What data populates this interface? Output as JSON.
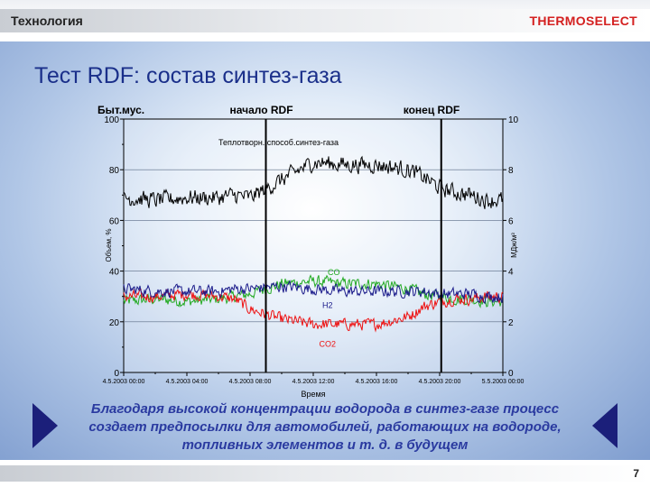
{
  "header": {
    "section": "Технология",
    "brand": "THERMOSELECT"
  },
  "slide": {
    "title": "Тест RDF: состав синтез-газа",
    "caption_lines": [
      "Благодаря высокой концентрации водорода в синтез-газе процесс",
      "создает предпосылки для автомобилей, работающих на водороде,",
      "топливных элементов и т. д. в будущем"
    ],
    "page_number": "7"
  },
  "colors": {
    "bg_accent": "#7f9dcf",
    "brand": "#d42020",
    "title": "#1a2f8a",
    "arrow": "#1b1f7a"
  },
  "chart_data": {
    "type": "line",
    "xlabel": "Время",
    "ylabel_left": "Объем, %",
    "ylabel_right": "МДж/м³",
    "ylim_left": [
      0,
      100
    ],
    "ylim_right": [
      0,
      10
    ],
    "yticks_left": [
      0,
      20,
      40,
      60,
      80,
      100
    ],
    "yticks_right": [
      0,
      2,
      4,
      6,
      8,
      10
    ],
    "xlim": [
      0,
      24
    ],
    "x_ticks": [
      {
        "x": 0,
        "label": "4.5.2003 00:00"
      },
      {
        "x": 4,
        "label": "4.5.2003 04:00"
      },
      {
        "x": 8,
        "label": "4.5.2003 08:00"
      },
      {
        "x": 12,
        "label": "4.5.2003 12:00"
      },
      {
        "x": 16,
        "label": "4.5.2003 16:00"
      },
      {
        "x": 20,
        "label": "4.5.2003 20:00"
      },
      {
        "x": 24,
        "label": "5.5.2003 00:00"
      }
    ],
    "markers": [
      {
        "x": 9.0,
        "label": "начало RDF"
      },
      {
        "x": 20.1,
        "label": "конец RDF"
      }
    ],
    "top_left_label": "Быт.мус.",
    "grid": true,
    "series": [
      {
        "name": "Теплотворн. способ.синтез-газа",
        "axis": "right",
        "color": "#000000",
        "x": [
          0,
          2,
          4,
          6,
          7,
          8,
          10,
          12,
          14,
          16,
          18,
          19,
          20,
          21,
          22,
          23,
          24
        ],
        "y": [
          6.9,
          6.8,
          6.9,
          6.9,
          7.0,
          6.9,
          7.6,
          8.3,
          8.2,
          8.2,
          8.0,
          7.7,
          7.3,
          7.1,
          7.0,
          6.8,
          6.8
        ]
      },
      {
        "name": "CO",
        "axis": "left",
        "color": "#22aa22",
        "x": [
          0,
          2,
          4,
          6,
          7,
          8,
          10,
          12,
          14,
          16,
          18,
          19,
          20,
          21,
          22,
          23,
          24
        ],
        "y": [
          28,
          29,
          28,
          29,
          30,
          31,
          35,
          36,
          35,
          35,
          33,
          31,
          30,
          29,
          29,
          28,
          28
        ]
      },
      {
        "name": "H2",
        "axis": "left",
        "color": "#1a1a8a",
        "x": [
          0,
          2,
          4,
          6,
          7,
          8,
          10,
          12,
          14,
          16,
          18,
          19,
          20,
          21,
          22,
          23,
          24
        ],
        "y": [
          33,
          32,
          32,
          32,
          33,
          33,
          34,
          33,
          32,
          32,
          32,
          32,
          31,
          31,
          31,
          30,
          30
        ]
      },
      {
        "name": "CO2",
        "axis": "left",
        "color": "#ee1111",
        "x": [
          0,
          2,
          4,
          6,
          7,
          8,
          10,
          12,
          14,
          16,
          18,
          19,
          20,
          21,
          22,
          23,
          24
        ],
        "y": [
          30,
          30,
          31,
          30,
          29,
          25,
          21,
          19,
          19,
          19,
          22,
          26,
          28,
          29,
          29,
          30,
          30
        ]
      }
    ],
    "series_labels": [
      {
        "text": "Теплотворн. способ.синтез-газа",
        "x": 9.8,
        "y": 89.6
      },
      {
        "text": "CO",
        "x": 13.3,
        "y": 38.5
      },
      {
        "text": "H2",
        "x": 12.9,
        "y": 25.5
      },
      {
        "text": "CO2",
        "x": 12.9,
        "y": 10.2
      }
    ]
  }
}
